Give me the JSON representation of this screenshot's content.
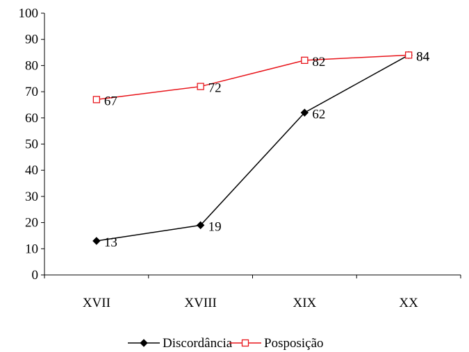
{
  "chart_data": {
    "type": "line",
    "title": "",
    "xlabel": "",
    "ylabel": "",
    "categories": [
      "XVII",
      "XVIII",
      "XIX",
      "XX"
    ],
    "ylim": [
      0,
      100
    ],
    "yticks": [
      0,
      10,
      20,
      30,
      40,
      50,
      60,
      70,
      80,
      90,
      100
    ],
    "grid": false,
    "legend_position": "bottom",
    "series": [
      {
        "name": "Discordância",
        "values": [
          13,
          19,
          62,
          84
        ],
        "color": "#000000",
        "marker": "diamond-filled",
        "labels": [
          "13",
          "19",
          "62",
          "84"
        ]
      },
      {
        "name": "Posposição",
        "values": [
          67,
          72,
          82,
          84
        ],
        "color": "#e8141a",
        "marker": "square-open",
        "labels": [
          "67",
          "72",
          "82",
          "84"
        ]
      }
    ]
  }
}
